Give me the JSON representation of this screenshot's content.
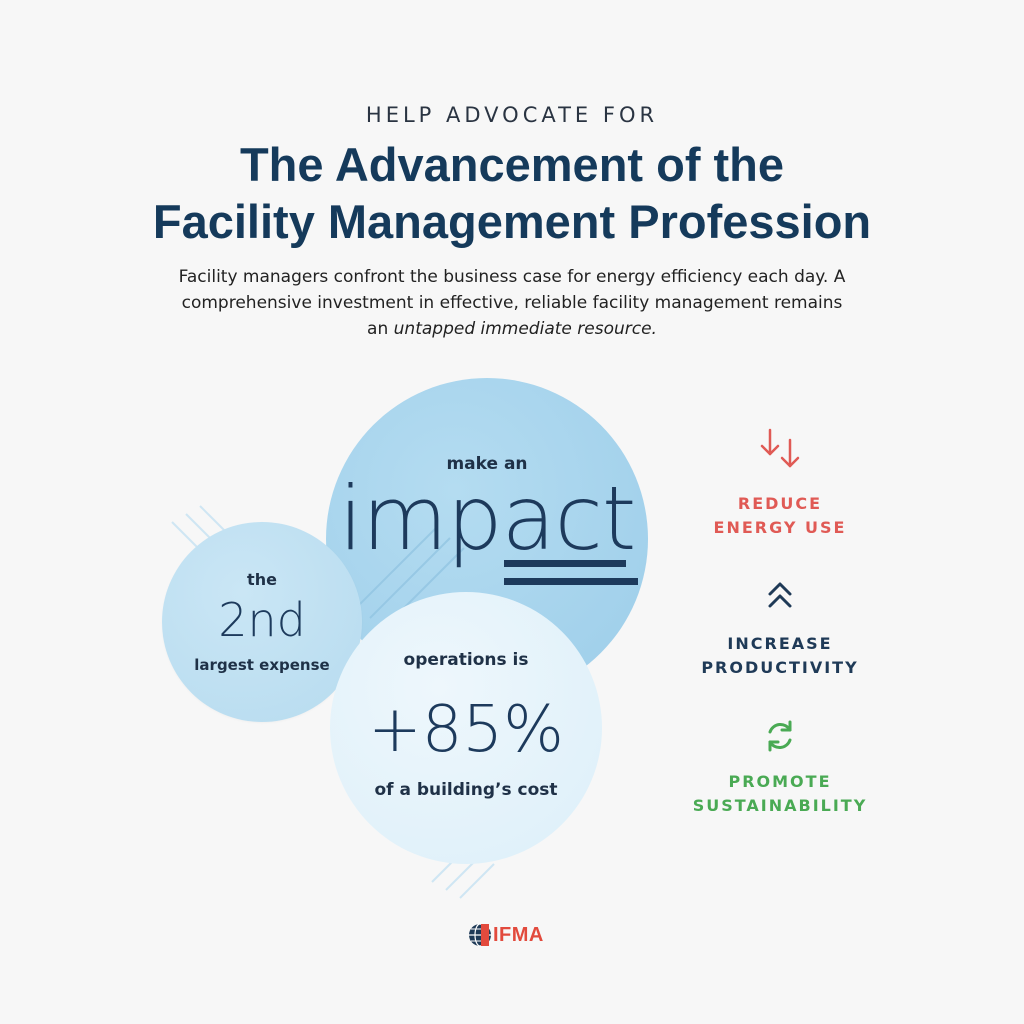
{
  "header": {
    "kicker": "HELP ADVOCATE FOR",
    "title_line1": "The Advancement of the",
    "title_line2": "Facility Management Profession",
    "intro_line1": "Facility managers confront the business case for energy efficiency each day. A",
    "intro_line2": "comprehensive investment in effective, reliable facility management remains",
    "intro_line3_prefix": "an ",
    "intro_line3_italic": "untapped immediate resource."
  },
  "circles": {
    "impact": {
      "top": "make an",
      "big": "impact"
    },
    "second": {
      "top": "the",
      "big": "2nd",
      "bottom": "largest expense"
    },
    "operations": {
      "top": "operations is",
      "big": "+85%",
      "bottom": "of a building’s cost"
    }
  },
  "benefits": [
    {
      "icon": "down-arrows-icon",
      "line1": "REDUCE",
      "line2": "ENERGY USE",
      "color": "#e05a55"
    },
    {
      "icon": "double-chevron-up-icon",
      "line1": "INCREASE",
      "line2": "PRODUCTIVITY",
      "color": "#1f3a57"
    },
    {
      "icon": "refresh-cycle-icon",
      "line1": "PROMOTE",
      "line2": "SUSTAINABILITY",
      "color": "#4aaa54"
    }
  ],
  "logo": {
    "text": "IFMA",
    "color": "#e24a3d"
  }
}
